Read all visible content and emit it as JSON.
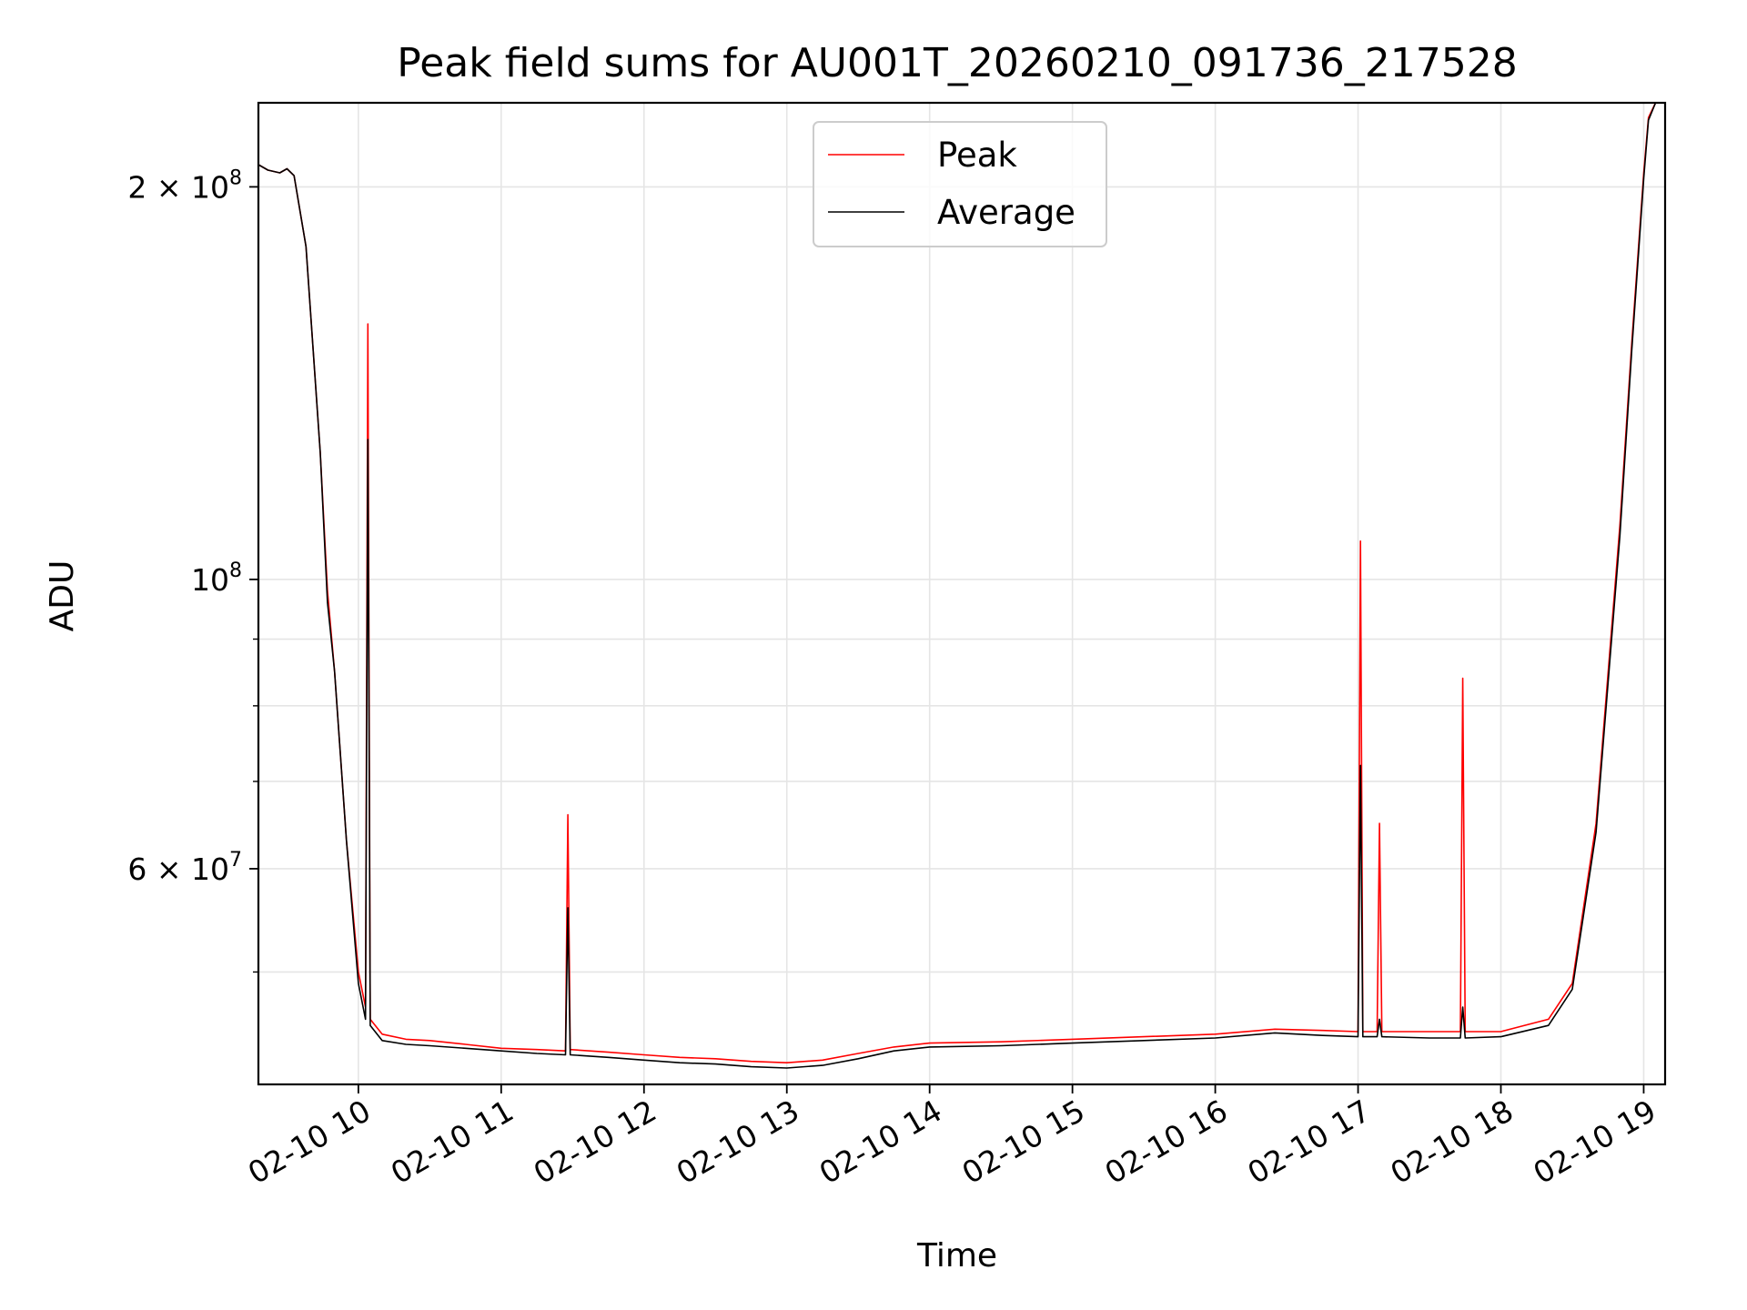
{
  "chart_data": {
    "type": "line",
    "title": "Peak field sums for AU001T_20260210_091736_217528",
    "xlabel": "Time",
    "ylabel": "ADU",
    "y_scale": "log",
    "grid": true,
    "legend_position": "top-center",
    "x_tick_labels": [
      "02-10 10",
      "02-10 11",
      "02-10 12",
      "02-10 13",
      "02-10 14",
      "02-10 15",
      "02-10 16",
      "02-10 17",
      "02-10 18",
      "02-10 19"
    ],
    "y_tick_labels": [
      {
        "value": 200000000,
        "base": "2 × 10",
        "exp": "8"
      },
      {
        "value": 100000000,
        "base": "10",
        "exp": "8"
      },
      {
        "value": 60000000,
        "base": "6 × 10",
        "exp": "7"
      }
    ],
    "xlim": [
      "2026-02-10 09:18",
      "2026-02-10 19:09"
    ],
    "ylim": [
      41000000,
      232000000
    ],
    "series": [
      {
        "name": "Peak",
        "color": "#ff0000",
        "points": [
          [
            "2026-02-10 09:18",
            208000000
          ],
          [
            "2026-02-10 09:22",
            206000000
          ],
          [
            "2026-02-10 09:27",
            205000000
          ],
          [
            "2026-02-10 09:30",
            206500000
          ],
          [
            "2026-02-10 09:33",
            204000000
          ],
          [
            "2026-02-10 09:38",
            180000000
          ],
          [
            "2026-02-10 09:44",
            125000000
          ],
          [
            "2026-02-10 09:47",
            98000000
          ],
          [
            "2026-02-10 09:50",
            85000000
          ],
          [
            "2026-02-10 09:55",
            63000000
          ],
          [
            "2026-02-10 10:00",
            50000000
          ],
          [
            "2026-02-10 10:03",
            47000000
          ],
          [
            "2026-02-10 10:04",
            157000000
          ],
          [
            "2026-02-10 10:05",
            46000000
          ],
          [
            "2026-02-10 10:10",
            44800000
          ],
          [
            "2026-02-10 10:20",
            44400000
          ],
          [
            "2026-02-10 10:30",
            44300000
          ],
          [
            "2026-02-10 10:45",
            44000000
          ],
          [
            "2026-02-10 11:00",
            43700000
          ],
          [
            "2026-02-10 11:15",
            43600000
          ],
          [
            "2026-02-10 11:27",
            43500000
          ],
          [
            "2026-02-10 11:28",
            66000000
          ],
          [
            "2026-02-10 11:29",
            43600000
          ],
          [
            "2026-02-10 11:45",
            43400000
          ],
          [
            "2026-02-10 12:00",
            43200000
          ],
          [
            "2026-02-10 12:15",
            43000000
          ],
          [
            "2026-02-10 12:30",
            42900000
          ],
          [
            "2026-02-10 12:45",
            42700000
          ],
          [
            "2026-02-10 13:00",
            42600000
          ],
          [
            "2026-02-10 13:15",
            42800000
          ],
          [
            "2026-02-10 13:30",
            43300000
          ],
          [
            "2026-02-10 13:45",
            43800000
          ],
          [
            "2026-02-10 14:00",
            44100000
          ],
          [
            "2026-02-10 14:30",
            44200000
          ],
          [
            "2026-02-10 15:00",
            44400000
          ],
          [
            "2026-02-10 15:30",
            44600000
          ],
          [
            "2026-02-10 16:00",
            44800000
          ],
          [
            "2026-02-10 16:25",
            45200000
          ],
          [
            "2026-02-10 16:45",
            45100000
          ],
          [
            "2026-02-10 17:00",
            45000000
          ],
          [
            "2026-02-10 17:01",
            107000000
          ],
          [
            "2026-02-10 17:02",
            45000000
          ],
          [
            "2026-02-10 17:08",
            45000000
          ],
          [
            "2026-02-10 17:09",
            65000000
          ],
          [
            "2026-02-10 17:10",
            45000000
          ],
          [
            "2026-02-10 17:30",
            45000000
          ],
          [
            "2026-02-10 17:43",
            45000000
          ],
          [
            "2026-02-10 17:44",
            84000000
          ],
          [
            "2026-02-10 17:45",
            45000000
          ],
          [
            "2026-02-10 18:00",
            45000000
          ],
          [
            "2026-02-10 18:20",
            46000000
          ],
          [
            "2026-02-10 18:30",
            49000000
          ],
          [
            "2026-02-10 18:40",
            65000000
          ],
          [
            "2026-02-10 18:50",
            110000000
          ],
          [
            "2026-02-10 18:55",
            152000000
          ],
          [
            "2026-02-10 19:00",
            205000000
          ],
          [
            "2026-02-10 19:02",
            226000000
          ],
          [
            "2026-02-10 19:05",
            232000000
          ]
        ]
      },
      {
        "name": "Average",
        "color": "#000000",
        "points": [
          [
            "2026-02-10 09:18",
            208000000
          ],
          [
            "2026-02-10 09:22",
            206000000
          ],
          [
            "2026-02-10 09:27",
            205000000
          ],
          [
            "2026-02-10 09:30",
            206500000
          ],
          [
            "2026-02-10 09:33",
            204000000
          ],
          [
            "2026-02-10 09:38",
            180000000
          ],
          [
            "2026-02-10 09:44",
            125000000
          ],
          [
            "2026-02-10 09:47",
            96000000
          ],
          [
            "2026-02-10 09:50",
            85000000
          ],
          [
            "2026-02-10 09:55",
            63000000
          ],
          [
            "2026-02-10 10:00",
            49000000
          ],
          [
            "2026-02-10 10:03",
            46000000
          ],
          [
            "2026-02-10 10:04",
            128000000
          ],
          [
            "2026-02-10 10:05",
            45500000
          ],
          [
            "2026-02-10 10:10",
            44300000
          ],
          [
            "2026-02-10 10:20",
            44000000
          ],
          [
            "2026-02-10 10:30",
            43900000
          ],
          [
            "2026-02-10 10:45",
            43700000
          ],
          [
            "2026-02-10 11:00",
            43500000
          ],
          [
            "2026-02-10 11:15",
            43300000
          ],
          [
            "2026-02-10 11:27",
            43200000
          ],
          [
            "2026-02-10 11:28",
            56000000
          ],
          [
            "2026-02-10 11:29",
            43200000
          ],
          [
            "2026-02-10 11:45",
            43000000
          ],
          [
            "2026-02-10 12:00",
            42800000
          ],
          [
            "2026-02-10 12:15",
            42600000
          ],
          [
            "2026-02-10 12:30",
            42500000
          ],
          [
            "2026-02-10 12:45",
            42300000
          ],
          [
            "2026-02-10 13:00",
            42200000
          ],
          [
            "2026-02-10 13:15",
            42400000
          ],
          [
            "2026-02-10 13:30",
            42900000
          ],
          [
            "2026-02-10 13:45",
            43500000
          ],
          [
            "2026-02-10 14:00",
            43800000
          ],
          [
            "2026-02-10 14:30",
            43900000
          ],
          [
            "2026-02-10 15:00",
            44100000
          ],
          [
            "2026-02-10 15:30",
            44300000
          ],
          [
            "2026-02-10 16:00",
            44500000
          ],
          [
            "2026-02-10 16:25",
            44900000
          ],
          [
            "2026-02-10 16:45",
            44700000
          ],
          [
            "2026-02-10 17:00",
            44600000
          ],
          [
            "2026-02-10 17:01",
            72000000
          ],
          [
            "2026-02-10 17:02",
            44600000
          ],
          [
            "2026-02-10 17:08",
            44600000
          ],
          [
            "2026-02-10 17:09",
            46000000
          ],
          [
            "2026-02-10 17:10",
            44600000
          ],
          [
            "2026-02-10 17:30",
            44500000
          ],
          [
            "2026-02-10 17:43",
            44500000
          ],
          [
            "2026-02-10 17:44",
            47000000
          ],
          [
            "2026-02-10 17:45",
            44500000
          ],
          [
            "2026-02-10 18:00",
            44600000
          ],
          [
            "2026-02-10 18:20",
            45500000
          ],
          [
            "2026-02-10 18:30",
            48500000
          ],
          [
            "2026-02-10 18:40",
            64000000
          ],
          [
            "2026-02-10 18:50",
            108000000
          ],
          [
            "2026-02-10 18:55",
            150000000
          ],
          [
            "2026-02-10 19:00",
            203000000
          ],
          [
            "2026-02-10 19:02",
            225000000
          ],
          [
            "2026-02-10 19:05",
            232000000
          ]
        ]
      }
    ]
  }
}
